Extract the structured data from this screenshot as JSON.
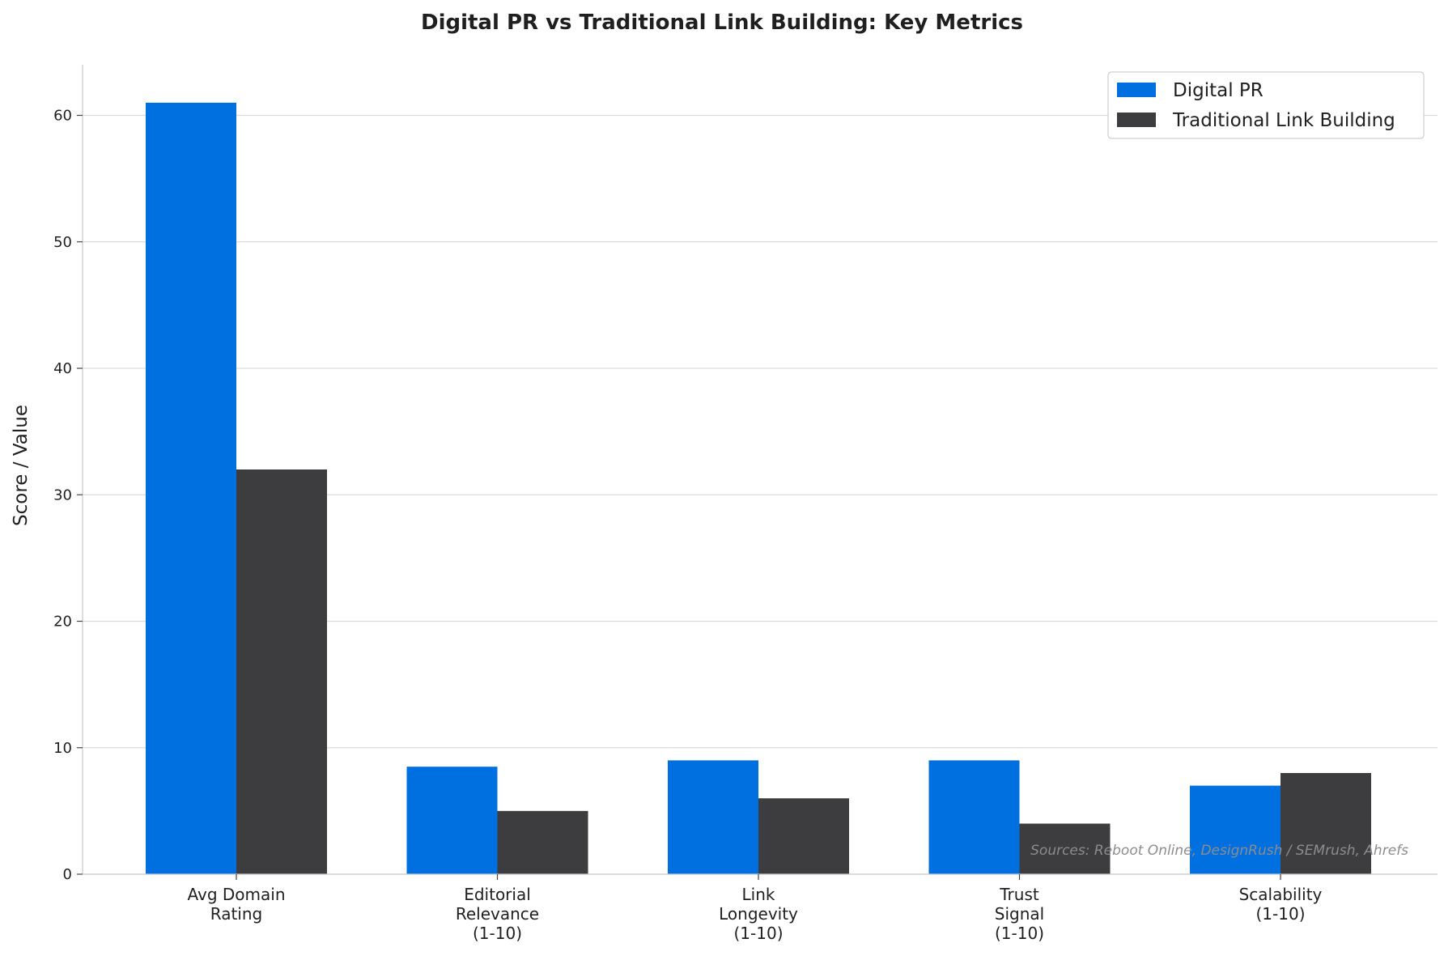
{
  "chart_data": {
    "type": "bar",
    "title": "Digital PR vs Traditional Link Building: Key Metrics",
    "xlabel": "",
    "ylabel": "Score / Value",
    "categories": [
      [
        "Avg Domain",
        "Rating"
      ],
      [
        "Editorial",
        "Relevance",
        "(1-10)"
      ],
      [
        "Link",
        "Longevity",
        "(1-10)"
      ],
      [
        "Trust",
        "Signal",
        "(1-10)"
      ],
      [
        "Scalability",
        "(1-10)"
      ]
    ],
    "series": [
      {
        "name": "Digital PR",
        "color": "#0070e0",
        "values": [
          61,
          8.5,
          9,
          9,
          7
        ]
      },
      {
        "name": "Traditional Link Building",
        "color": "#3d3d3f",
        "values": [
          32,
          5,
          6,
          4,
          8
        ]
      }
    ],
    "ylim": [
      0,
      64
    ],
    "yticks": [
      0,
      10,
      20,
      30,
      40,
      50,
      60
    ],
    "grid": "horizontal",
    "legend_position": "top-right",
    "source_note": "Sources: Reboot Online, DesignRush / SEMrush, Ahrefs"
  }
}
